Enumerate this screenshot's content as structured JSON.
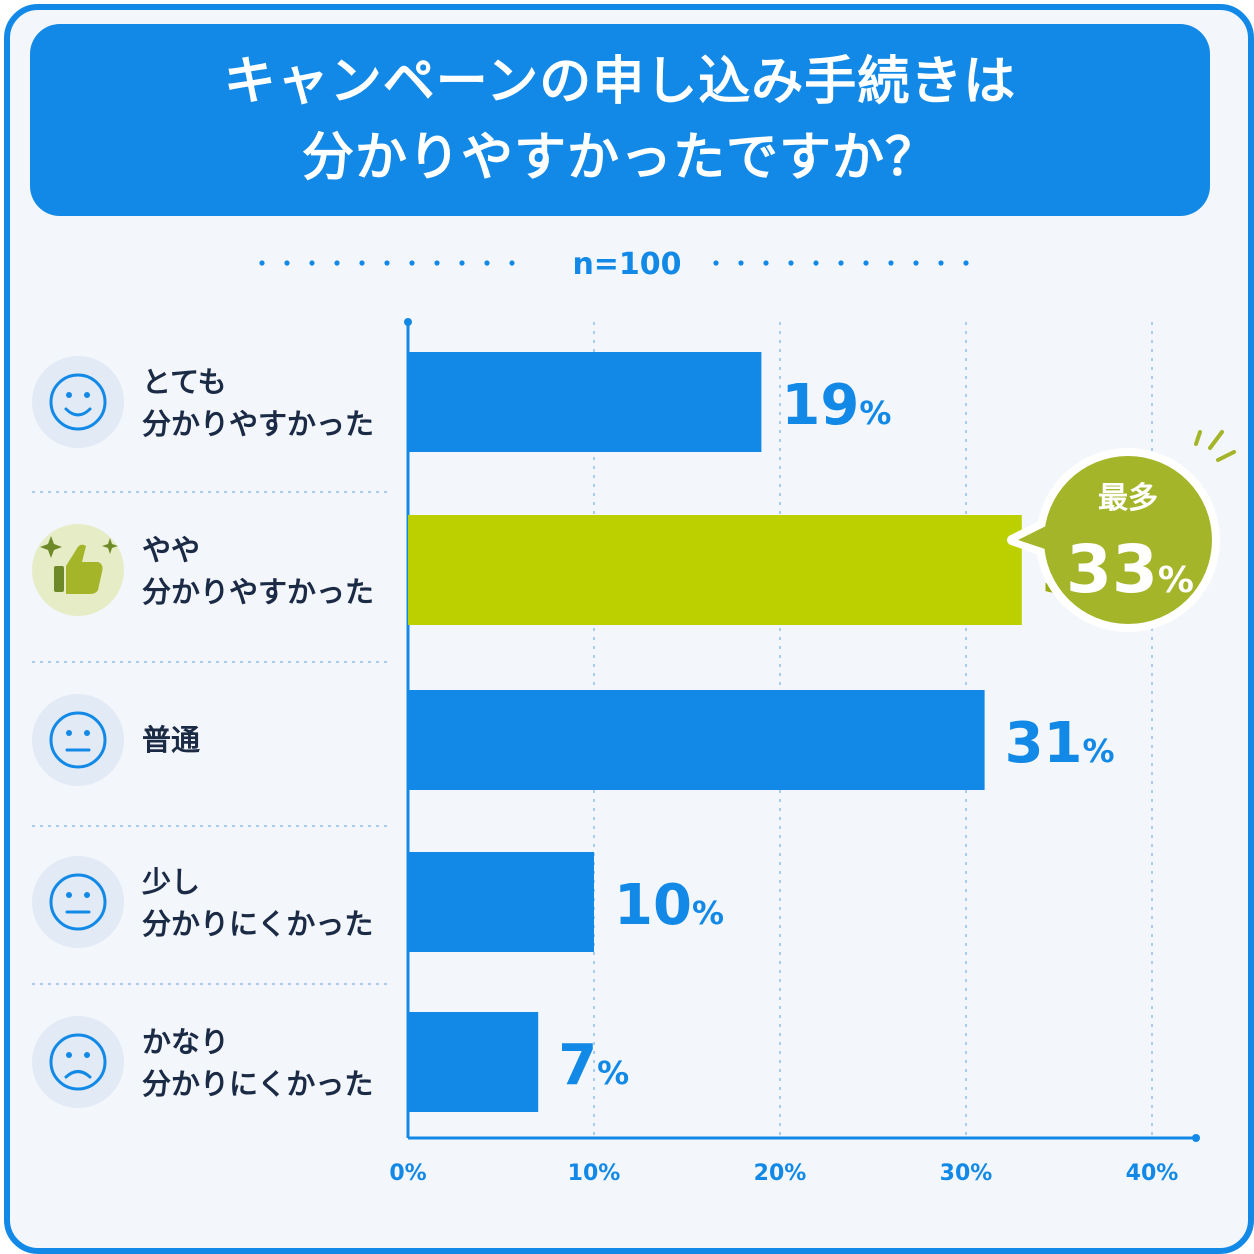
{
  "title_line1": "キャンペーンの申し込み手続きは",
  "title_line2": "分かりやすかったですか？",
  "sample_size": "n=100",
  "badge": {
    "label": "最多",
    "value": "33",
    "unit": "%"
  },
  "colors": {
    "primary": "#1289e6",
    "highlight": "#bcd000",
    "highlight_text": "#9aab0f",
    "badge_bg": "#a4b52a",
    "text": "#1c2b45",
    "icon_bg": "#e2eaf5"
  },
  "chart_data": {
    "type": "bar",
    "orientation": "horizontal",
    "categories": [
      {
        "lines": [
          "とても",
          "分かりやすかった"
        ],
        "icon": "smile-icon"
      },
      {
        "lines": [
          "やや",
          "分かりやすかった"
        ],
        "icon": "thumbs-up-icon"
      },
      {
        "lines": [
          "普通"
        ],
        "icon": "neutral-face-icon"
      },
      {
        "lines": [
          "少し",
          "分かりにくかった"
        ],
        "icon": "neutral-face-icon"
      },
      {
        "lines": [
          "かなり",
          "分かりにくかった"
        ],
        "icon": "sad-face-icon"
      }
    ],
    "values": [
      19,
      33,
      31,
      10,
      7
    ],
    "value_unit": "%",
    "highlight_index": 1,
    "xlim": [
      0,
      40
    ],
    "xticks": [
      "0%",
      "10%",
      "20%",
      "30%",
      "40%"
    ],
    "grid": true
  }
}
